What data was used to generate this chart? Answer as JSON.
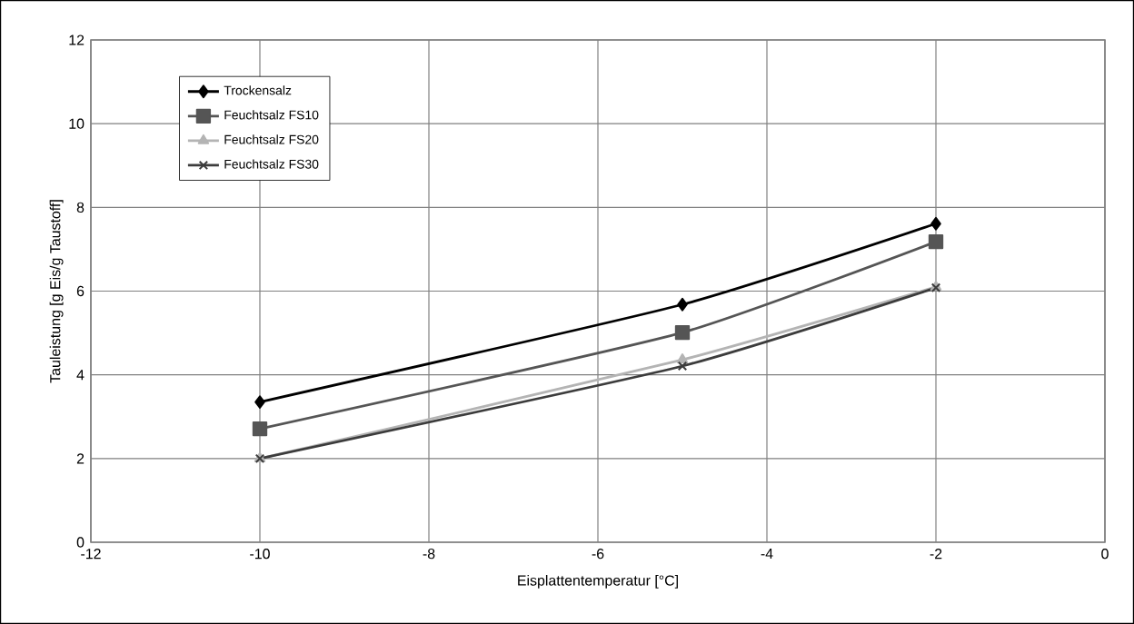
{
  "chart_data": {
    "type": "line",
    "xlabel": "Eisplattentemperatur [°C]",
    "ylabel": "Tauleistung [g Eis/g Taustoff]",
    "x": [
      -10,
      -5,
      -2
    ],
    "series": [
      {
        "name": "Trockensalz",
        "color": "#000000",
        "marker": "diamond",
        "values": [
          3.35,
          5.68,
          7.61
        ]
      },
      {
        "name": "Feuchtsalz FS10",
        "color": "#555555",
        "marker": "square",
        "values": [
          2.71,
          5.01,
          7.18
        ]
      },
      {
        "name": "Feuchtsalz FS20",
        "color": "#b4b4b4",
        "marker": "triangle",
        "values": [
          2.0,
          4.36,
          6.1
        ]
      },
      {
        "name": "Feuchtsalz FS30",
        "color": "#3c3c3c",
        "marker": "cross",
        "values": [
          2.0,
          4.21,
          6.08
        ]
      }
    ],
    "xlim": [
      -12,
      0
    ],
    "xticks": [
      -12,
      -10,
      -8,
      -6,
      -4,
      -2,
      0
    ],
    "ylim": [
      0,
      12
    ],
    "yticks": [
      0,
      2,
      4,
      6,
      8,
      10,
      12
    ],
    "grid": true,
    "legend": "top left",
    "line_style": "solid"
  }
}
